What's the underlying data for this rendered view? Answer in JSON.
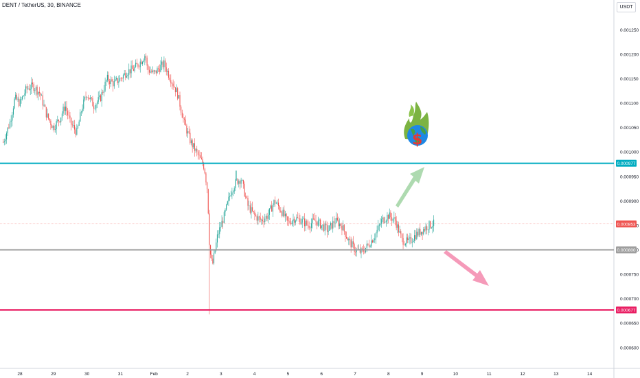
{
  "header": {
    "title": "DENT / TetherUS, 30, BINANCE",
    "currency": "USDT"
  },
  "chart_data": {
    "type": "candlestick",
    "y_ticks": [
      "0.001250",
      "0.001200",
      "0.001150",
      "0.001100",
      "0.001050",
      "0.001000",
      "0.000950",
      "0.000900",
      "0.000850",
      "0.000800",
      "0.000750",
      "0.000700",
      "0.000650",
      "0.000600"
    ],
    "x_ticks": [
      "28",
      "29",
      "30",
      "31",
      "Feb",
      "2",
      "3",
      "4",
      "5",
      "6",
      "7",
      "8",
      "9",
      "10",
      "11",
      "12",
      "13",
      "14"
    ],
    "ylim": [
      0.00058,
      0.00128
    ],
    "colors": {
      "up": "#26a69a",
      "down": "#ef5350",
      "cyan": "#00acc1",
      "gray": "#9e9e9e",
      "magenta": "#e91e63"
    },
    "levels": [
      {
        "label": "0.000977",
        "value": 0.000977,
        "color": "#00acc1"
      },
      {
        "label": "0.000800",
        "value": 0.0008,
        "color": "#9e9e9e"
      },
      {
        "label": "0.000677",
        "value": 0.000677,
        "color": "#e91e63"
      }
    ],
    "last_price": {
      "label": "0.000853",
      "value": 0.000853,
      "color": "#ef5350"
    },
    "path": [
      [
        27.5,
        0.00102
      ],
      [
        27.7,
        0.00106
      ],
      [
        27.85,
        0.00111
      ],
      [
        28.0,
        0.0011
      ],
      [
        28.2,
        0.00113
      ],
      [
        28.4,
        0.001135
      ],
      [
        28.6,
        0.00112
      ],
      [
        28.8,
        0.001075
      ],
      [
        29.0,
        0.00105
      ],
      [
        29.2,
        0.00107
      ],
      [
        29.35,
        0.001095
      ],
      [
        29.5,
        0.00106
      ],
      [
        29.7,
        0.00104
      ],
      [
        29.85,
        0.00109
      ],
      [
        30.0,
        0.00112
      ],
      [
        30.2,
        0.001095
      ],
      [
        30.4,
        0.00111
      ],
      [
        30.6,
        0.00115
      ],
      [
        30.8,
        0.00114
      ],
      [
        31.0,
        0.00115
      ],
      [
        31.2,
        0.001165
      ],
      [
        31.4,
        0.00117
      ],
      [
        31.6,
        0.001185
      ],
      [
        31.75,
        0.0012
      ],
      [
        31.8,
        0.00117
      ],
      [
        32.0,
        0.00116
      ],
      [
        32.2,
        0.001175
      ],
      [
        32.3,
        0.00118
      ],
      [
        32.5,
        0.00115
      ],
      [
        32.7,
        0.00112
      ],
      [
        32.9,
        0.00106
      ],
      [
        33.1,
        0.00102
      ],
      [
        33.3,
        0.000995
      ],
      [
        33.5,
        0.00097
      ],
      [
        33.6,
        0.00092
      ],
      [
        33.65,
        0.00082
      ],
      [
        33.7,
        0.00078
      ],
      [
        33.75,
        0.00077
      ],
      [
        33.9,
        0.00083
      ],
      [
        34.1,
        0.00087
      ],
      [
        34.3,
        0.00092
      ],
      [
        34.45,
        0.00094
      ],
      [
        34.6,
        0.000945
      ],
      [
        34.8,
        0.00089
      ],
      [
        35.0,
        0.00087
      ],
      [
        35.2,
        0.00086
      ],
      [
        35.4,
        0.00087
      ],
      [
        35.6,
        0.0009
      ],
      [
        35.8,
        0.00088
      ],
      [
        36.0,
        0.000855
      ],
      [
        36.2,
        0.000865
      ],
      [
        36.4,
        0.00086
      ],
      [
        36.6,
        0.00085
      ],
      [
        36.8,
        0.00086
      ],
      [
        37.0,
        0.00085
      ],
      [
        37.2,
        0.00084
      ],
      [
        37.4,
        0.00086
      ],
      [
        37.6,
        0.00085
      ],
      [
        37.8,
        0.00082
      ],
      [
        38.0,
        0.0008
      ],
      [
        38.2,
        0.000795
      ],
      [
        38.4,
        0.00081
      ],
      [
        38.6,
        0.00083
      ],
      [
        38.8,
        0.00086
      ],
      [
        39.0,
        0.00087
      ],
      [
        39.2,
        0.00086
      ],
      [
        39.4,
        0.00082
      ],
      [
        39.6,
        0.000815
      ],
      [
        39.8,
        0.00083
      ],
      [
        40.0,
        0.00084
      ],
      [
        40.2,
        0.00085
      ],
      [
        40.35,
        0.000853
      ]
    ],
    "annotations": [
      {
        "kind": "arrow-up",
        "color": "#a5d6a7"
      },
      {
        "kind": "arrow-down",
        "color": "#f48fb1"
      },
      {
        "kind": "money-globe-fire"
      }
    ]
  }
}
